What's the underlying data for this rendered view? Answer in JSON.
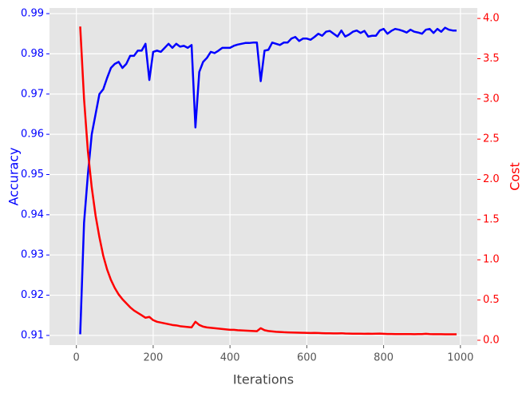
{
  "chart_data": {
    "type": "line",
    "x_label": "Iterations",
    "y_label": "Accuracy",
    "y2_label": "Cost",
    "x": [
      10,
      20,
      30,
      40,
      50,
      60,
      70,
      80,
      90,
      100,
      110,
      120,
      130,
      140,
      150,
      160,
      170,
      180,
      190,
      200,
      210,
      220,
      230,
      240,
      250,
      260,
      270,
      280,
      290,
      300,
      310,
      320,
      330,
      340,
      350,
      360,
      370,
      380,
      390,
      400,
      410,
      420,
      430,
      440,
      450,
      460,
      470,
      480,
      490,
      500,
      510,
      520,
      530,
      540,
      550,
      560,
      570,
      580,
      590,
      600,
      610,
      620,
      630,
      640,
      650,
      660,
      670,
      680,
      690,
      700,
      710,
      720,
      730,
      740,
      750,
      760,
      770,
      780,
      790,
      800,
      810,
      820,
      830,
      840,
      850,
      860,
      870,
      880,
      890,
      900,
      910,
      920,
      930,
      940,
      950,
      960,
      970,
      980,
      990
    ],
    "series": [
      {
        "name": "Accuracy",
        "color": "#0000ff",
        "axis": "y",
        "values": [
          0.9103,
          0.938,
          0.95,
          0.96,
          0.965,
          0.97,
          0.9712,
          0.974,
          0.9765,
          0.9775,
          0.978,
          0.9765,
          0.9775,
          0.9795,
          0.9795,
          0.9808,
          0.9808,
          0.9825,
          0.9735,
          0.9805,
          0.9808,
          0.9805,
          0.9815,
          0.9825,
          0.9815,
          0.9825,
          0.9818,
          0.982,
          0.9815,
          0.9822,
          0.9617,
          0.9755,
          0.978,
          0.979,
          0.9805,
          0.9802,
          0.9808,
          0.9815,
          0.9815,
          0.9815,
          0.982,
          0.9823,
          0.9825,
          0.9827,
          0.9827,
          0.9828,
          0.9828,
          0.9732,
          0.9808,
          0.981,
          0.9828,
          0.9825,
          0.9822,
          0.9828,
          0.9828,
          0.9838,
          0.9842,
          0.9832,
          0.9838,
          0.9838,
          0.9835,
          0.9842,
          0.985,
          0.9845,
          0.9855,
          0.9857,
          0.985,
          0.9843,
          0.9858,
          0.9843,
          0.9848,
          0.9855,
          0.9858,
          0.9852,
          0.9857,
          0.9843,
          0.9845,
          0.9845,
          0.9858,
          0.9862,
          0.985,
          0.9857,
          0.9862,
          0.986,
          0.9857,
          0.9853,
          0.986,
          0.9855,
          0.9853,
          0.985,
          0.986,
          0.9862,
          0.9852,
          0.9862,
          0.9855,
          0.9865,
          0.986,
          0.9858,
          0.9858
        ]
      },
      {
        "name": "Cost",
        "color": "#ff0000",
        "axis": "y2",
        "values": [
          3.9,
          3.0,
          2.35,
          1.9,
          1.55,
          1.28,
          1.05,
          0.88,
          0.75,
          0.65,
          0.57,
          0.51,
          0.46,
          0.41,
          0.37,
          0.34,
          0.31,
          0.28,
          0.29,
          0.25,
          0.23,
          0.22,
          0.21,
          0.2,
          0.19,
          0.185,
          0.175,
          0.17,
          0.165,
          0.16,
          0.23,
          0.19,
          0.17,
          0.16,
          0.155,
          0.15,
          0.145,
          0.14,
          0.135,
          0.13,
          0.13,
          0.125,
          0.122,
          0.12,
          0.118,
          0.115,
          0.113,
          0.15,
          0.125,
          0.115,
          0.11,
          0.105,
          0.103,
          0.1,
          0.098,
          0.096,
          0.095,
          0.094,
          0.093,
          0.092,
          0.09,
          0.092,
          0.09,
          0.088,
          0.087,
          0.086,
          0.085,
          0.085,
          0.087,
          0.084,
          0.083,
          0.082,
          0.082,
          0.081,
          0.08,
          0.081,
          0.08,
          0.082,
          0.083,
          0.08,
          0.078,
          0.078,
          0.077,
          0.077,
          0.077,
          0.076,
          0.076,
          0.075,
          0.076,
          0.077,
          0.08,
          0.076,
          0.075,
          0.075,
          0.075,
          0.074,
          0.074,
          0.074,
          0.074
        ]
      }
    ],
    "xlim": [
      -70,
      1044
    ],
    "xticks": [
      0,
      200,
      400,
      600,
      800,
      1000
    ],
    "ylim": [
      0.9076,
      0.9914
    ],
    "yticks": [
      0.91,
      0.92,
      0.93,
      0.94,
      0.95,
      0.96,
      0.97,
      0.98,
      0.99
    ],
    "y2lim": [
      -0.06,
      4.13
    ],
    "y2ticks": [
      {
        "value": 0,
        "label": "0.0"
      },
      0.5,
      {
        "value": 1,
        "label": "1.0"
      },
      1.5,
      {
        "value": 2,
        "label": "2.0"
      },
      2.5,
      {
        "value": 3,
        "label": "3.0"
      },
      3.5,
      {
        "value": 4,
        "label": "4.0"
      }
    ],
    "grid": true
  }
}
